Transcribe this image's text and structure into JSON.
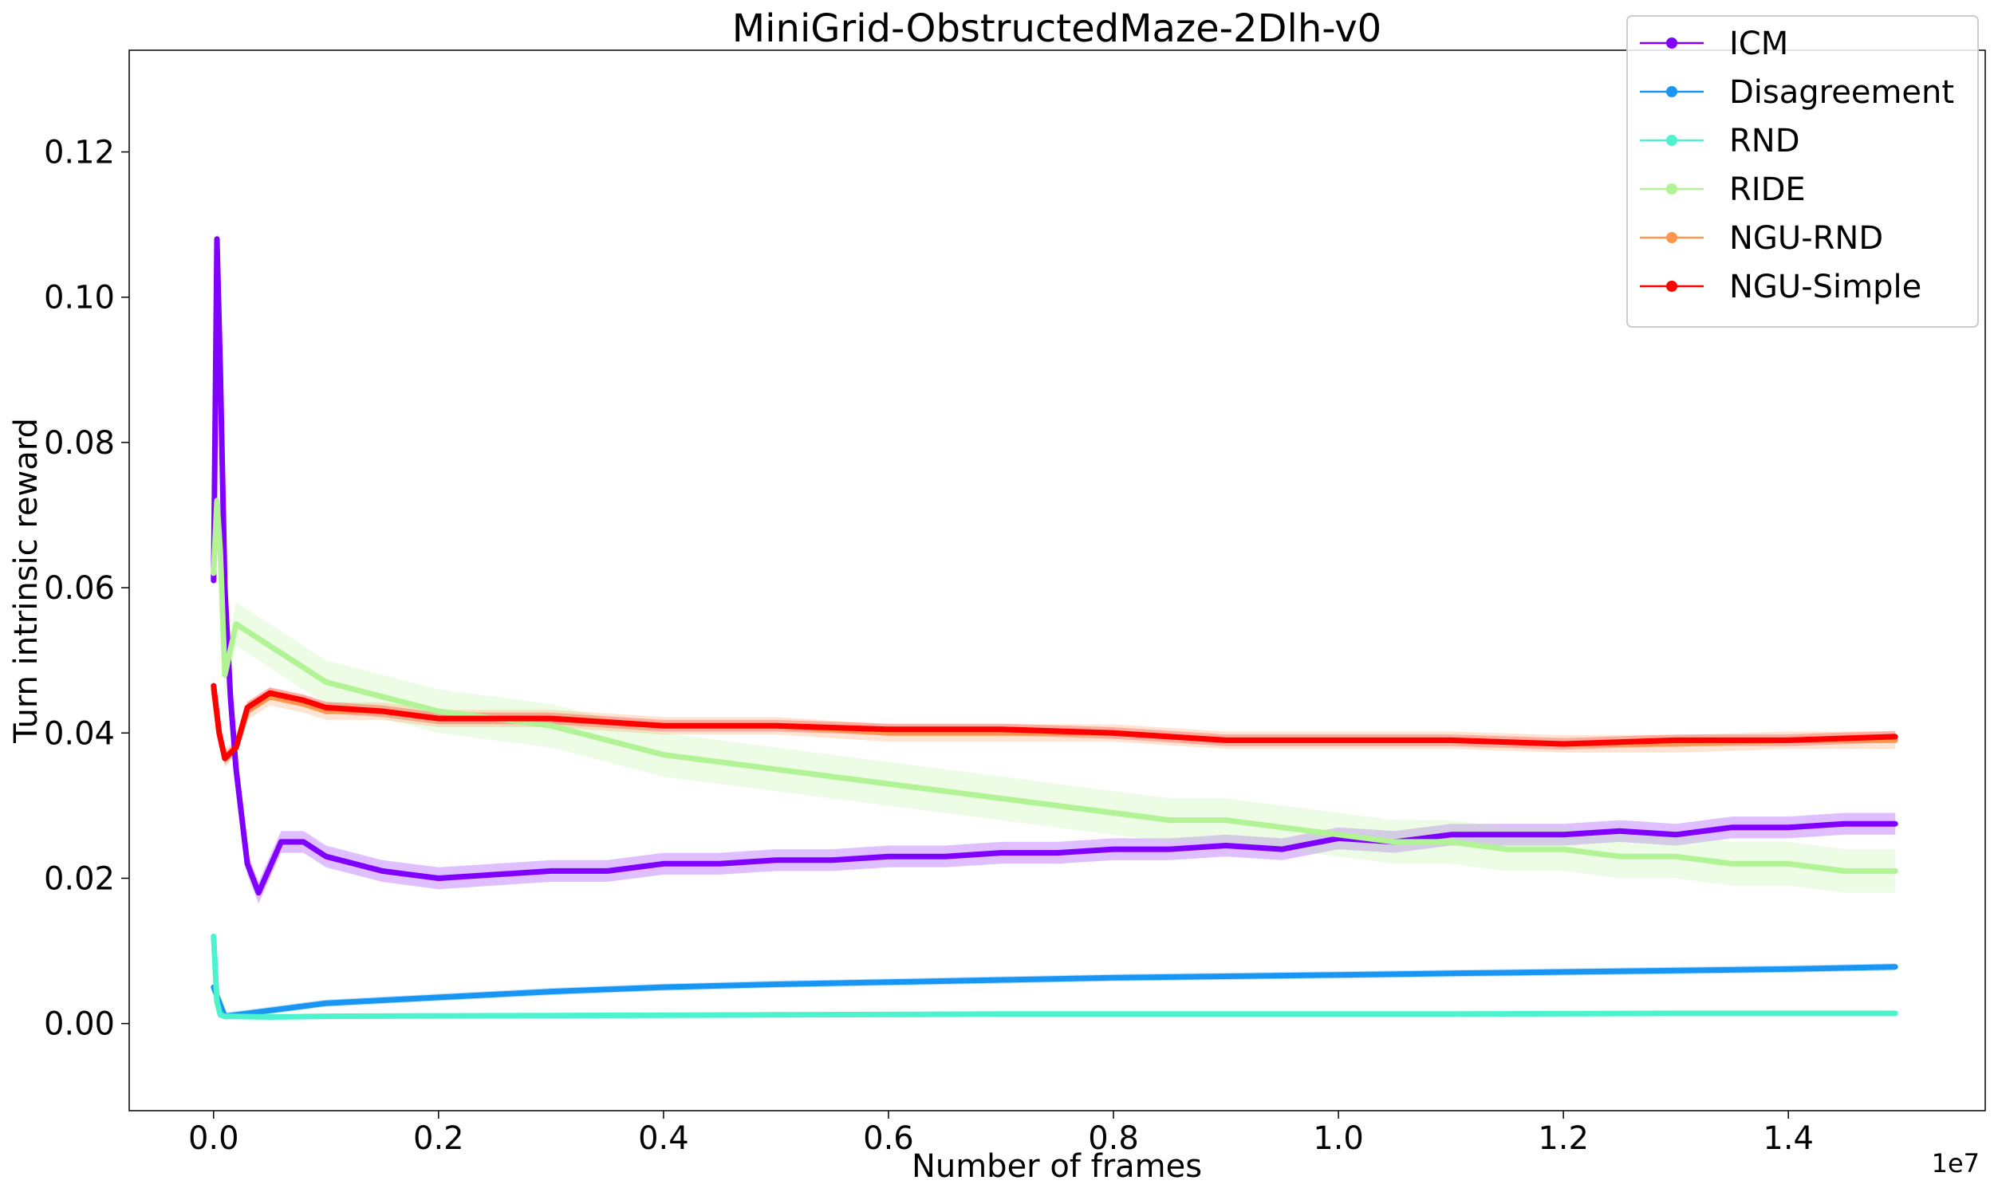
{
  "chart_data": {
    "type": "line",
    "title": "MiniGrid-ObstructedMaze-2Dlh-v0",
    "xlabel": "Number of frames",
    "ylabel": "Turn intrinsic reward",
    "x_offset_label": "1e7",
    "xlim": [
      -0.075,
      1.575
    ],
    "ylim": [
      -0.012,
      0.134
    ],
    "x_ticks": [
      0.0,
      0.2,
      0.4,
      0.6,
      0.8,
      1.0,
      1.2,
      1.4
    ],
    "x_tick_labels": [
      "0.0",
      "0.2",
      "0.4",
      "0.6",
      "0.8",
      "1.0",
      "1.2",
      "1.4"
    ],
    "y_ticks": [
      0.0,
      0.02,
      0.04,
      0.06,
      0.08,
      0.1,
      0.12
    ],
    "y_tick_labels": [
      "0.00",
      "0.02",
      "0.04",
      "0.06",
      "0.08",
      "0.10",
      "0.12"
    ],
    "grid": false,
    "legend_position": "top-right",
    "series": [
      {
        "name": "ICM",
        "color": "#8000ff",
        "x": [
          0.0,
          0.003,
          0.006,
          0.01,
          0.015,
          0.02,
          0.03,
          0.04,
          0.06,
          0.08,
          0.1,
          0.15,
          0.2,
          0.25,
          0.3,
          0.35,
          0.4,
          0.45,
          0.5,
          0.55,
          0.6,
          0.65,
          0.7,
          0.75,
          0.8,
          0.85,
          0.9,
          0.95,
          1.0,
          1.05,
          1.1,
          1.15,
          1.2,
          1.25,
          1.3,
          1.35,
          1.4,
          1.45,
          1.495
        ],
        "y": [
          0.061,
          0.108,
          0.09,
          0.06,
          0.045,
          0.035,
          0.022,
          0.018,
          0.025,
          0.025,
          0.023,
          0.021,
          0.02,
          0.0205,
          0.021,
          0.021,
          0.022,
          0.022,
          0.0225,
          0.0225,
          0.023,
          0.023,
          0.0235,
          0.0235,
          0.024,
          0.024,
          0.0245,
          0.024,
          0.0255,
          0.025,
          0.026,
          0.026,
          0.026,
          0.0265,
          0.026,
          0.027,
          0.027,
          0.0275,
          0.0275
        ],
        "band": 0.0015
      },
      {
        "name": "Disagreement",
        "color": "#1996f3",
        "x": [
          0.0,
          0.01,
          0.05,
          0.1,
          0.2,
          0.3,
          0.4,
          0.5,
          0.6,
          0.7,
          0.8,
          0.9,
          1.0,
          1.1,
          1.2,
          1.3,
          1.4,
          1.495
        ],
        "y": [
          0.005,
          0.001,
          0.0018,
          0.0028,
          0.0036,
          0.0044,
          0.005,
          0.0054,
          0.0057,
          0.006,
          0.0063,
          0.0065,
          0.0067,
          0.0069,
          0.0071,
          0.0073,
          0.0075,
          0.0078
        ],
        "band": 0.0005
      },
      {
        "name": "RND",
        "color": "#4df3ce",
        "x": [
          0.0,
          0.003,
          0.006,
          0.01,
          0.05,
          0.1,
          0.3,
          0.5,
          0.7,
          0.9,
          1.1,
          1.3,
          1.495
        ],
        "y": [
          0.012,
          0.003,
          0.0012,
          0.001,
          0.0009,
          0.001,
          0.0011,
          0.0012,
          0.0013,
          0.0013,
          0.0013,
          0.0014,
          0.0014
        ],
        "band": 0.0003
      },
      {
        "name": "RIDE",
        "color": "#b2f396",
        "x": [
          0.0,
          0.003,
          0.006,
          0.01,
          0.02,
          0.05,
          0.1,
          0.15,
          0.2,
          0.25,
          0.3,
          0.35,
          0.4,
          0.45,
          0.5,
          0.55,
          0.6,
          0.65,
          0.7,
          0.75,
          0.8,
          0.85,
          0.9,
          0.95,
          1.0,
          1.05,
          1.1,
          1.15,
          1.2,
          1.25,
          1.3,
          1.35,
          1.4,
          1.45,
          1.495
        ],
        "y": [
          0.062,
          0.072,
          0.065,
          0.048,
          0.055,
          0.052,
          0.047,
          0.045,
          0.043,
          0.042,
          0.041,
          0.039,
          0.037,
          0.036,
          0.035,
          0.034,
          0.033,
          0.032,
          0.031,
          0.03,
          0.029,
          0.028,
          0.028,
          0.027,
          0.026,
          0.025,
          0.025,
          0.024,
          0.024,
          0.023,
          0.023,
          0.022,
          0.022,
          0.021,
          0.021
        ],
        "band": 0.003
      },
      {
        "name": "NGU-RND",
        "color": "#ff954e",
        "x": [
          0.0,
          0.005,
          0.01,
          0.02,
          0.03,
          0.05,
          0.08,
          0.1,
          0.15,
          0.2,
          0.3,
          0.4,
          0.5,
          0.6,
          0.7,
          0.8,
          0.9,
          1.0,
          1.1,
          1.2,
          1.3,
          1.4,
          1.495
        ],
        "y": [
          0.046,
          0.04,
          0.0365,
          0.038,
          0.043,
          0.045,
          0.044,
          0.043,
          0.043,
          0.042,
          0.042,
          0.041,
          0.041,
          0.04,
          0.04,
          0.04,
          0.039,
          0.039,
          0.039,
          0.0385,
          0.0385,
          0.039,
          0.039
        ],
        "band": 0.0012
      },
      {
        "name": "NGU-Simple",
        "color": "#ff0000",
        "x": [
          0.0,
          0.005,
          0.01,
          0.02,
          0.03,
          0.05,
          0.08,
          0.1,
          0.15,
          0.2,
          0.3,
          0.4,
          0.5,
          0.6,
          0.7,
          0.8,
          0.9,
          1.0,
          1.1,
          1.2,
          1.3,
          1.4,
          1.495
        ],
        "y": [
          0.0465,
          0.04,
          0.0365,
          0.038,
          0.0435,
          0.0455,
          0.0445,
          0.0435,
          0.043,
          0.042,
          0.042,
          0.041,
          0.041,
          0.0405,
          0.0405,
          0.04,
          0.039,
          0.039,
          0.039,
          0.0385,
          0.039,
          0.039,
          0.0395
        ],
        "band": 0.0008
      }
    ]
  }
}
